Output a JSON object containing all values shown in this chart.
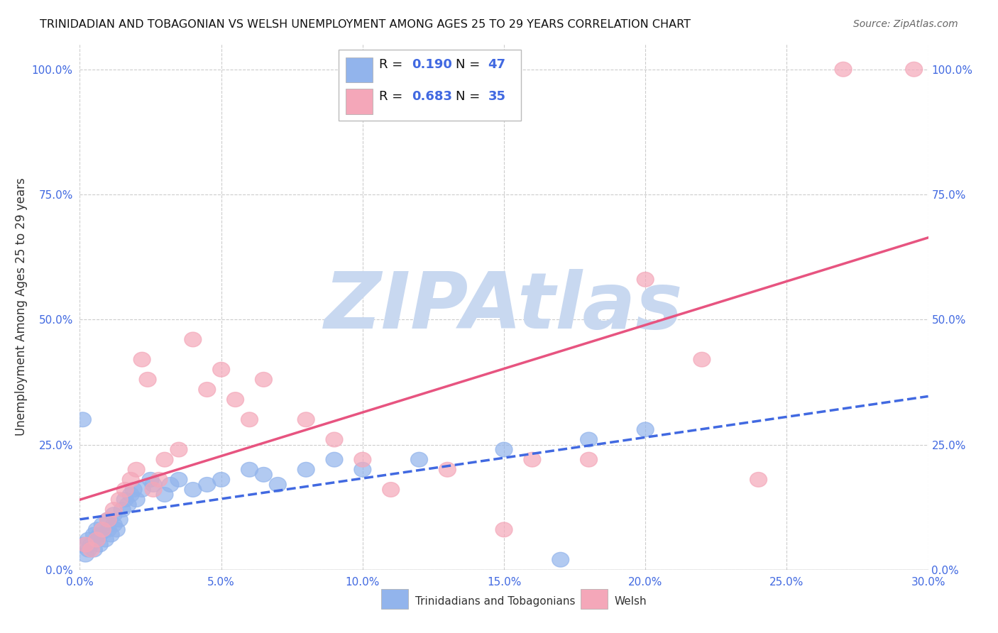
{
  "title": "TRINIDADIAN AND TOBAGONIAN VS WELSH UNEMPLOYMENT AMONG AGES 25 TO 29 YEARS CORRELATION CHART",
  "source": "Source: ZipAtlas.com",
  "ylabel": "Unemployment Among Ages 25 to 29 years",
  "xlim": [
    0.0,
    0.3
  ],
  "ylim": [
    0.0,
    1.05
  ],
  "xticks": [
    0.0,
    0.05,
    0.1,
    0.15,
    0.2,
    0.25,
    0.3
  ],
  "yticks": [
    0.0,
    0.25,
    0.5,
    0.75,
    1.0
  ],
  "blue_R": 0.19,
  "blue_N": 47,
  "pink_R": 0.683,
  "pink_N": 35,
  "blue_color": "#92b4ec",
  "pink_color": "#f4a7b9",
  "blue_line_color": "#4169e1",
  "pink_line_color": "#e75480",
  "watermark_color": "#c8d8f0",
  "watermark_text": "ZIPAtlas",
  "background_color": "#ffffff",
  "blue_scatter_x": [
    0.001,
    0.002,
    0.003,
    0.003,
    0.004,
    0.005,
    0.005,
    0.006,
    0.006,
    0.007,
    0.007,
    0.008,
    0.009,
    0.01,
    0.01,
    0.011,
    0.012,
    0.012,
    0.013,
    0.014,
    0.015,
    0.016,
    0.017,
    0.018,
    0.019,
    0.02,
    0.022,
    0.025,
    0.026,
    0.03,
    0.032,
    0.035,
    0.04,
    0.045,
    0.05,
    0.06,
    0.065,
    0.07,
    0.08,
    0.09,
    0.1,
    0.12,
    0.15,
    0.18,
    0.2,
    0.001,
    0.17
  ],
  "blue_scatter_y": [
    0.05,
    0.03,
    0.04,
    0.06,
    0.05,
    0.07,
    0.04,
    0.06,
    0.08,
    0.05,
    0.07,
    0.09,
    0.06,
    0.08,
    0.1,
    0.07,
    0.09,
    0.11,
    0.08,
    0.1,
    0.12,
    0.14,
    0.13,
    0.15,
    0.16,
    0.14,
    0.16,
    0.18,
    0.17,
    0.15,
    0.17,
    0.18,
    0.16,
    0.17,
    0.18,
    0.2,
    0.19,
    0.17,
    0.2,
    0.22,
    0.2,
    0.22,
    0.24,
    0.26,
    0.28,
    0.3,
    0.02
  ],
  "pink_scatter_x": [
    0.002,
    0.004,
    0.006,
    0.008,
    0.01,
    0.012,
    0.014,
    0.016,
    0.018,
    0.02,
    0.022,
    0.024,
    0.026,
    0.028,
    0.03,
    0.035,
    0.04,
    0.045,
    0.05,
    0.055,
    0.06,
    0.065,
    0.08,
    0.09,
    0.1,
    0.11,
    0.13,
    0.15,
    0.16,
    0.18,
    0.2,
    0.22,
    0.24,
    0.27,
    0.295
  ],
  "pink_scatter_y": [
    0.05,
    0.04,
    0.06,
    0.08,
    0.1,
    0.12,
    0.14,
    0.16,
    0.18,
    0.2,
    0.42,
    0.38,
    0.16,
    0.18,
    0.22,
    0.24,
    0.46,
    0.36,
    0.4,
    0.34,
    0.3,
    0.38,
    0.3,
    0.26,
    0.22,
    0.16,
    0.2,
    0.08,
    0.22,
    0.22,
    0.58,
    0.42,
    0.18,
    1.0,
    1.0
  ]
}
